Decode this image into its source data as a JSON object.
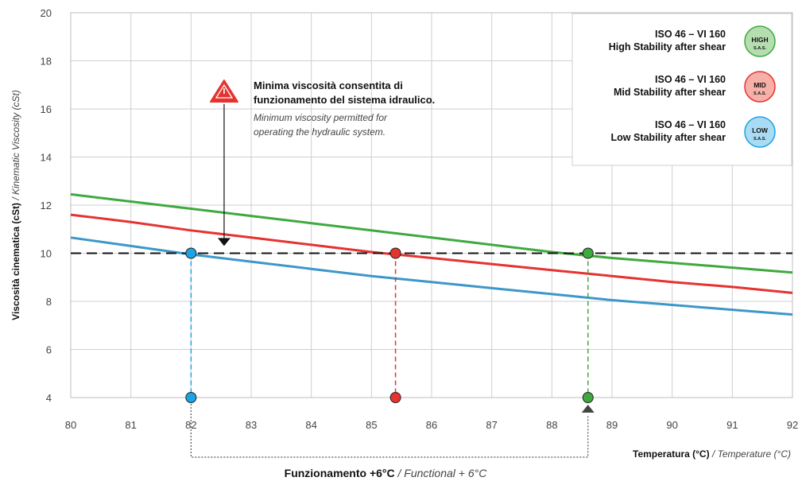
{
  "chart_data": {
    "type": "line",
    "x": [
      80,
      81,
      82,
      83,
      84,
      85,
      86,
      87,
      88,
      89,
      90,
      91,
      92
    ],
    "xlim": [
      80,
      92
    ],
    "ylim": [
      4,
      20
    ],
    "x_ticks": [
      80,
      81,
      82,
      83,
      84,
      85,
      86,
      87,
      88,
      89,
      90,
      91,
      92
    ],
    "y_ticks": [
      4,
      6,
      8,
      10,
      12,
      14,
      16,
      18,
      20
    ],
    "grid": true,
    "ylabel_bold": "Viscosità cinematica (cSt)",
    "ylabel_italic": "/ Kinematic Viscosity (cSt)",
    "xlabel_bold": "Temperatura (°C)",
    "xlabel_italic": "/ Temperature (°C)",
    "bottom_label_bold": "Funzionamento +6°C",
    "bottom_label_italic": "/ Functional + 6°C",
    "threshold": 10,
    "series": [
      {
        "key": "high",
        "color": "#3fa93f",
        "marker_fill": "#3fa93f",
        "values": [
          12.45,
          12.15,
          11.85,
          11.55,
          11.25,
          10.95,
          10.65,
          10.35,
          10.05,
          9.8,
          9.6,
          9.4,
          9.2
        ],
        "crossing_x": 88.6
      },
      {
        "key": "mid",
        "color": "#e53330",
        "marker_fill": "#e53330",
        "values": [
          11.6,
          11.3,
          10.95,
          10.65,
          10.35,
          10.05,
          9.8,
          9.55,
          9.3,
          9.05,
          8.8,
          8.6,
          8.35
        ],
        "crossing_x": 85.4
      },
      {
        "key": "low",
        "color": "#3d97c9",
        "marker_fill": "#1ba4e4",
        "values": [
          10.65,
          10.3,
          9.95,
          9.65,
          9.35,
          9.05,
          8.8,
          8.55,
          8.3,
          8.05,
          7.85,
          7.65,
          7.45
        ],
        "crossing_x": 82.0
      }
    ],
    "legend": {
      "placement": "top-right",
      "items": [
        {
          "line1": "ISO 46 – VI 160",
          "line2": "High Stability after shear",
          "badge": "HIGH",
          "badge_sub": "S.A.S.",
          "badge_fill": "#b5deb0",
          "badge_stroke": "#3fa93f"
        },
        {
          "line1": "ISO 46 – VI 160",
          "line2": "Mid Stability after shear",
          "badge": "MID",
          "badge_sub": "S.A.S.",
          "badge_fill": "#f7b0a8",
          "badge_stroke": "#e53330"
        },
        {
          "line1": "ISO 46 – VI 160",
          "line2": "Low Stability after shear",
          "badge": "LOW",
          "badge_sub": "S.A.S.",
          "badge_fill": "#a9dcf4",
          "badge_stroke": "#1ba4e4"
        }
      ]
    },
    "annotation": {
      "bold_line1": "Minima viscosità consentita di",
      "bold_line2": "funzionamento del sistema idraulico.",
      "italic_line1": "Minimum viscosity permitted for",
      "italic_line2": "operating the hydraulic system.",
      "icon_color": "#e53330",
      "arrow_x": 82.55,
      "arrow_from_y": 16.2,
      "arrow_to_y": 10.3
    },
    "bracket": {
      "from_x": 82.0,
      "to_x": 88.6
    }
  }
}
